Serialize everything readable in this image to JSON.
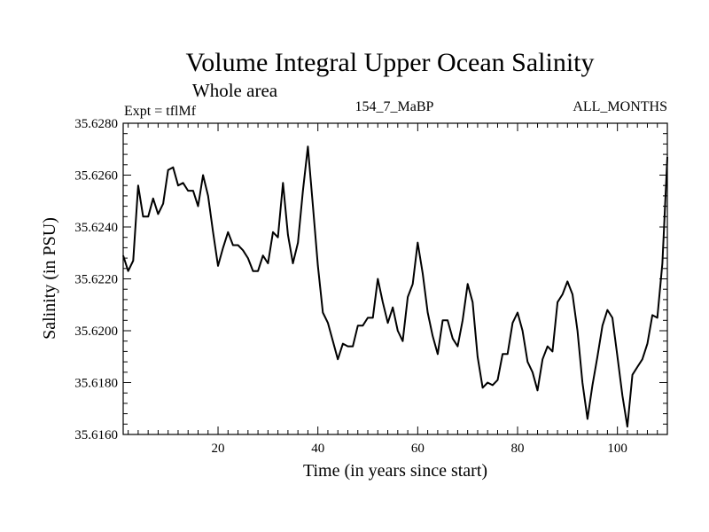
{
  "chart_data": {
    "type": "line",
    "title": "Volume Integral Upper Ocean Salinity",
    "subtitle": "Whole area",
    "left_label": "Expt = tflMf",
    "center_label": "154_7_MaBP",
    "right_label": "ALL_MONTHS",
    "xlabel": "Time (in years since start)",
    "ylabel": "Salinity (in PSU)",
    "xlim": [
      1,
      110
    ],
    "ylim": [
      35.616,
      35.628
    ],
    "x_ticks": [
      20,
      40,
      60,
      80,
      100
    ],
    "x_tick_labels": [
      "20",
      "40",
      "60",
      "80",
      "100"
    ],
    "y_ticks": [
      35.616,
      35.618,
      35.62,
      35.622,
      35.624,
      35.626,
      35.628
    ],
    "y_tick_labels": [
      "35.6160",
      "35.6180",
      "35.6200",
      "35.6220",
      "35.6240",
      "35.6260",
      "35.6280"
    ],
    "series": [
      {
        "name": "salinity",
        "color": "#000000",
        "x": [
          1,
          2,
          3,
          4,
          5,
          6,
          7,
          8,
          9,
          10,
          11,
          12,
          13,
          14,
          15,
          16,
          17,
          18,
          19,
          20,
          21,
          22,
          23,
          24,
          25,
          26,
          27,
          28,
          29,
          30,
          31,
          32,
          33,
          34,
          35,
          36,
          37,
          38,
          39,
          40,
          41,
          42,
          43,
          44,
          45,
          46,
          47,
          48,
          49,
          50,
          51,
          52,
          53,
          54,
          55,
          56,
          57,
          58,
          59,
          60,
          61,
          62,
          63,
          64,
          65,
          66,
          67,
          68,
          69,
          70,
          71,
          72,
          73,
          74,
          75,
          76,
          77,
          78,
          79,
          80,
          81,
          82,
          83,
          84,
          85,
          86,
          87,
          88,
          89,
          90,
          91,
          92,
          93,
          94,
          95,
          96,
          97,
          98,
          99,
          100,
          101,
          102,
          103,
          104,
          105,
          106,
          107,
          108,
          109,
          110
        ],
        "values": [
          35.6229,
          35.6223,
          35.6227,
          35.6256,
          35.6244,
          35.6244,
          35.6251,
          35.6245,
          35.6249,
          35.6262,
          35.6263,
          35.6256,
          35.6257,
          35.6254,
          35.6254,
          35.6248,
          35.626,
          35.6252,
          35.6238,
          35.6225,
          35.6232,
          35.6238,
          35.6233,
          35.6233,
          35.6231,
          35.6228,
          35.6223,
          35.6223,
          35.6229,
          35.6226,
          35.6238,
          35.6236,
          35.6257,
          35.6237,
          35.6226,
          35.6234,
          35.6254,
          35.6271,
          35.6248,
          35.6225,
          35.6207,
          35.6203,
          35.6196,
          35.6189,
          35.6195,
          35.6194,
          35.6194,
          35.6202,
          35.6202,
          35.6205,
          35.6205,
          35.622,
          35.6211,
          35.6203,
          35.6209,
          35.62,
          35.6196,
          35.6213,
          35.6218,
          35.6234,
          35.6222,
          35.6207,
          35.6198,
          35.6191,
          35.6204,
          35.6204,
          35.6197,
          35.6194,
          35.6204,
          35.6218,
          35.6211,
          35.619,
          35.6178,
          35.618,
          35.6179,
          35.6181,
          35.6191,
          35.6191,
          35.6203,
          35.6207,
          35.62,
          35.6188,
          35.6184,
          35.6177,
          35.6189,
          35.6194,
          35.6192,
          35.6211,
          35.6214,
          35.6219,
          35.6214,
          35.62,
          35.618,
          35.6166,
          35.6179,
          35.619,
          35.6202,
          35.6208,
          35.6205,
          35.619,
          35.6175,
          35.6163,
          35.6183,
          35.6186,
          35.6189,
          35.6195,
          35.6206,
          35.6205,
          35.6226,
          35.6267
        ]
      }
    ]
  }
}
